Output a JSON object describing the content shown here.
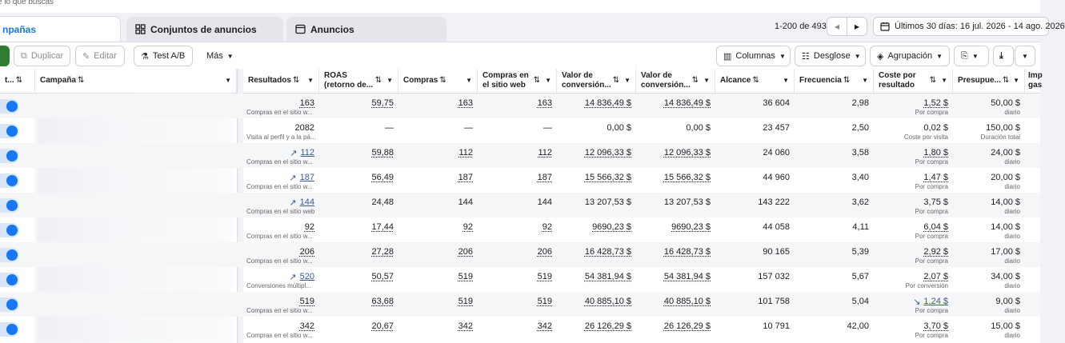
{
  "header": {
    "search_hint": "e lo que buscas",
    "tabs": [
      {
        "label": "npañas",
        "icon": "campaign-icon"
      },
      {
        "label": "Conjuntos de anuncios",
        "icon": "grid-icon"
      },
      {
        "label": "Anuncios",
        "icon": "ad-window-icon"
      }
    ],
    "range": "1-200 de 493",
    "date_range": "Últimos 30 días: 16 jul. 2026 - 14 ago. 2026"
  },
  "toolbar": {
    "duplicate": "Duplicar",
    "edit": "Editar",
    "ab_test": "Test A/B",
    "more": "Más",
    "columns": "Columnas",
    "breakdown": "Desglose",
    "grouping": "Agrupación"
  },
  "columns": {
    "status": "t...",
    "campaign": "Campaña",
    "results": "Resultados",
    "roas": "ROAS (retorno de...",
    "purchases": "Compras",
    "site_purchases": "Compras en el sitio web",
    "conv_value_1": "Valor de conversión...",
    "conv_value_2": "Valor de conversión...",
    "reach": "Alcance",
    "frequency": "Frecuencia",
    "cost_per_result": "Coste por resultado",
    "budget": "Presupue...",
    "spent": "Imp gas"
  },
  "rows": [
    {
      "results": "163",
      "results_sub": "Compras en el sitio w...",
      "trend": "",
      "roas": "59,75",
      "purchases": "163",
      "site": "163",
      "v1": "14 836,49 $",
      "v2": "14 836,49 $",
      "reach": "36 604",
      "freq": "2,98",
      "cpr": "1,52 $",
      "cpr_sub": "Por compra",
      "cpr_trend": "",
      "budget": "50,00 $",
      "budget_sub": "diario"
    },
    {
      "results": "2082",
      "results_sub": "Visita al perfil y a la pá...",
      "trend": "",
      "roas": "—",
      "purchases": "—",
      "site": "—",
      "v1": "0,00 $",
      "v2": "0,00 $",
      "reach": "23 457",
      "freq": "2,50",
      "cpr": "0,02 $",
      "cpr_sub": "Coste por visita",
      "cpr_trend": "",
      "budget": "150,00 $",
      "budget_sub": "Duración total"
    },
    {
      "results": "112",
      "results_sub": "Compras en el sitio w...",
      "trend": "up",
      "roas": "59,88",
      "purchases": "112",
      "site": "112",
      "v1": "12 096,33 $",
      "v2": "12 096,33 $",
      "reach": "24 060",
      "freq": "3,58",
      "cpr": "1,80 $",
      "cpr_sub": "Por compra",
      "cpr_trend": "",
      "budget": "24,00 $",
      "budget_sub": "diario"
    },
    {
      "results": "187",
      "results_sub": "Compras en el sitio w...",
      "trend": "up",
      "roas": "56,49",
      "purchases": "187",
      "site": "187",
      "v1": "15 566,32 $",
      "v2": "15 566,32 $",
      "reach": "44 960",
      "freq": "3,40",
      "cpr": "1,47 $",
      "cpr_sub": "Por compra",
      "cpr_trend": "",
      "budget": "20,00 $",
      "budget_sub": "diario"
    },
    {
      "results": "144",
      "results_sub": "Compras en el sitio web",
      "trend": "up",
      "roas": "24,48",
      "purchases": "144",
      "site": "144",
      "v1": "13 207,53 $",
      "v2": "13 207,53 $",
      "reach": "143 222",
      "freq": "3,62",
      "cpr": "3,75 $",
      "cpr_sub": "Por compra",
      "cpr_trend": "",
      "budget": "14,00 $",
      "budget_sub": "diario"
    },
    {
      "results": "92",
      "results_sub": "Compras en el sitio w...",
      "trend": "",
      "roas": "17,44",
      "purchases": "92",
      "site": "92",
      "v1": "9690,23 $",
      "v2": "9690,23 $",
      "reach": "44 058",
      "freq": "4,11",
      "cpr": "6,04 $",
      "cpr_sub": "Por compra",
      "cpr_trend": "",
      "budget": "14,00 $",
      "budget_sub": "diario"
    },
    {
      "results": "206",
      "results_sub": "Compras en el sitio w...",
      "trend": "",
      "roas": "27,28",
      "purchases": "206",
      "site": "206",
      "v1": "16 428,73 $",
      "v2": "16 428,73 $",
      "reach": "90 165",
      "freq": "5,39",
      "cpr": "2,92 $",
      "cpr_sub": "Por compra",
      "cpr_trend": "",
      "budget": "17,00 $",
      "budget_sub": "diario"
    },
    {
      "results": "520",
      "results_sub": "Conversiones múltipl...",
      "trend": "up",
      "roas": "50,57",
      "purchases": "519",
      "site": "519",
      "v1": "54 381,94 $",
      "v2": "54 381,94 $",
      "reach": "157 032",
      "freq": "5,67",
      "cpr": "2,07 $",
      "cpr_sub": "Por conversión",
      "cpr_trend": "",
      "budget": "34,00 $",
      "budget_sub": "diario"
    },
    {
      "results": "519",
      "results_sub": "Compras en el sitio w...",
      "trend": "",
      "roas": "63,68",
      "purchases": "519",
      "site": "519",
      "v1": "40 885,10 $",
      "v2": "40 885,10 $",
      "reach": "101 758",
      "freq": "5,04",
      "cpr": "1,24 $",
      "cpr_sub": "Por compra",
      "cpr_trend": "down",
      "budget": "9,00 $",
      "budget_sub": "diario"
    },
    {
      "results": "342",
      "results_sub": "Compras en el sitio w...",
      "trend": "",
      "roas": "20,67",
      "purchases": "342",
      "site": "342",
      "v1": "26 126,29 $",
      "v2": "26 126,29 $",
      "reach": "10 791",
      "freq": "42,00",
      "cpr": "3,70 $",
      "cpr_sub": "Por compra",
      "cpr_trend": "",
      "budget": "15,00 $",
      "budget_sub": "diario"
    }
  ],
  "colors": {
    "accent": "#1877f2",
    "link": "#385898",
    "green": "#2e7d32"
  }
}
